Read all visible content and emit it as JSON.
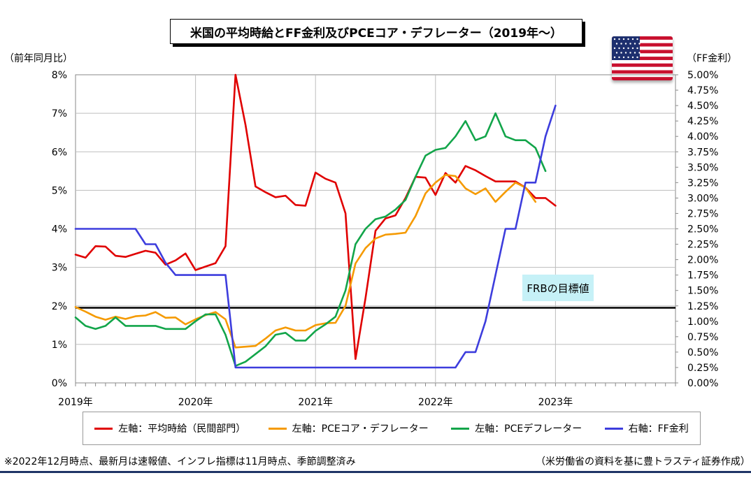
{
  "title": "米国の平均時給とFF金利及びPCEコア・デフレーター（2019年～）",
  "left_axis_title": "（前年同月比）",
  "right_axis_title": "（FF金利）",
  "target_label": "FRBの目標値",
  "footnote_left": "※2022年12月時点、最新月は速報値、インフレ指標は11月時点、季節調整済み",
  "footnote_right": "（米労働省の資料を基に豊トラスティ証券作成）",
  "flag_icon": "us-flag-icon",
  "colors": {
    "wage": "#e00000",
    "core_pce": "#f59a00",
    "pce": "#12a54a",
    "ff": "#3d3ddd",
    "target_line": "#000000"
  },
  "chart_data": {
    "type": "line",
    "x_start": "2019-01",
    "x_end": "2023-12",
    "x_ticks": [
      "2019年",
      "2020年",
      "2021年",
      "2022年",
      "2023年"
    ],
    "y_left_ticks": [
      "0%",
      "1%",
      "2%",
      "3%",
      "4%",
      "5%",
      "6%",
      "7%",
      "8%"
    ],
    "y_left_range": [
      0,
      8
    ],
    "y_right_ticks": [
      "0.00%",
      "0.25%",
      "0.50%",
      "0.75%",
      "1.00%",
      "1.25%",
      "1.50%",
      "1.75%",
      "2.00%",
      "2.25%",
      "2.50%",
      "2.75%",
      "3.00%",
      "3.25%",
      "3.50%",
      "3.75%",
      "4.00%",
      "4.25%",
      "4.50%",
      "4.75%",
      "5.00%"
    ],
    "y_right_range": [
      0,
      5
    ],
    "target_value_left": 1.95,
    "series": [
      {
        "name": "左軸：平均時給（民間部門）",
        "axis": "left",
        "start": "2019-01",
        "values": [
          3.33,
          3.25,
          3.55,
          3.54,
          3.3,
          3.27,
          3.35,
          3.43,
          3.38,
          3.07,
          3.18,
          3.36,
          2.93,
          3.02,
          3.11,
          3.55,
          8.0,
          6.7,
          5.1,
          4.95,
          4.82,
          4.86,
          4.62,
          4.6,
          5.46,
          5.3,
          5.2,
          4.4,
          0.62,
          2.2,
          3.95,
          4.27,
          4.35,
          4.8,
          5.35,
          5.33,
          4.88,
          5.45,
          5.2,
          5.63,
          5.52,
          5.37,
          5.23,
          5.23,
          5.23,
          5.07,
          4.8,
          4.8,
          4.6
        ]
      },
      {
        "name": "左軸：PCEコア・デフレーター",
        "axis": "left",
        "start": "2019-01",
        "values": [
          1.97,
          1.85,
          1.72,
          1.64,
          1.72,
          1.66,
          1.73,
          1.75,
          1.84,
          1.69,
          1.7,
          1.52,
          1.65,
          1.76,
          1.84,
          1.65,
          0.92,
          0.94,
          0.96,
          1.15,
          1.36,
          1.44,
          1.36,
          1.36,
          1.5,
          1.55,
          1.56,
          2.0,
          3.1,
          3.5,
          3.75,
          3.85,
          3.87,
          3.9,
          4.33,
          4.92,
          5.2,
          5.4,
          5.37,
          5.05,
          4.9,
          5.05,
          4.7,
          4.96,
          5.2,
          5.07,
          4.7
        ]
      },
      {
        "name": "左軸：PCEデフレーター",
        "axis": "left",
        "start": "2019-01",
        "values": [
          1.7,
          1.48,
          1.4,
          1.48,
          1.7,
          1.48,
          1.48,
          1.48,
          1.48,
          1.4,
          1.4,
          1.4,
          1.6,
          1.78,
          1.78,
          1.25,
          0.44,
          0.55,
          0.75,
          0.95,
          1.25,
          1.3,
          1.1,
          1.1,
          1.35,
          1.52,
          1.72,
          2.4,
          3.6,
          4.0,
          4.25,
          4.32,
          4.5,
          4.75,
          5.35,
          5.9,
          6.05,
          6.1,
          6.4,
          6.8,
          6.3,
          6.4,
          7.0,
          6.4,
          6.3,
          6.3,
          6.1,
          5.5
        ]
      },
      {
        "name": "右軸：FF金利",
        "axis": "right",
        "start": "2019-01",
        "values": [
          2.5,
          2.5,
          2.5,
          2.5,
          2.5,
          2.5,
          2.5,
          2.25,
          2.25,
          1.95,
          1.75,
          1.75,
          1.75,
          1.75,
          1.75,
          1.75,
          0.25,
          0.25,
          0.25,
          0.25,
          0.25,
          0.25,
          0.25,
          0.25,
          0.25,
          0.25,
          0.25,
          0.25,
          0.25,
          0.25,
          0.25,
          0.25,
          0.25,
          0.25,
          0.25,
          0.25,
          0.25,
          0.25,
          0.25,
          0.5,
          0.5,
          1.0,
          1.75,
          2.5,
          2.5,
          3.25,
          3.25,
          4.0,
          4.5
        ]
      }
    ]
  }
}
